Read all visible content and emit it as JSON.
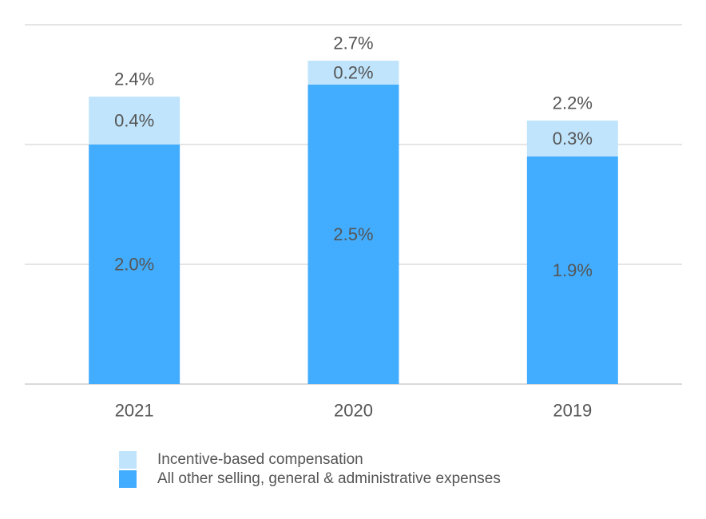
{
  "chart_data": {
    "type": "bar",
    "stacked": true,
    "categories": [
      "2021",
      "2020",
      "2019"
    ],
    "series": [
      {
        "name": "All other selling, general & administrative expenses",
        "values": [
          2.0,
          2.5,
          1.9
        ],
        "labels": [
          "2.0%",
          "2.5%",
          "1.9%"
        ],
        "color": "#42adff"
      },
      {
        "name": "Incentive-based compensation",
        "values": [
          0.4,
          0.2,
          0.3
        ],
        "labels": [
          "0.4%",
          "0.2%",
          "0.3%"
        ],
        "color": "#bfe4fc"
      }
    ],
    "totals": [
      2.4,
      2.7,
      2.2
    ],
    "total_labels": [
      "2.4%",
      "2.7%",
      "2.2%"
    ],
    "ylim": [
      0,
      3.0
    ],
    "gridlines": [
      0,
      1,
      2,
      3
    ],
    "grid": true,
    "legend_position": "bottom-left",
    "gridline_color": "#e5e5e5",
    "label_color": "#555555"
  },
  "legend": [
    {
      "label": "Incentive-based compensation",
      "color": "#bfe4fc"
    },
    {
      "label": "All other selling, general & administrative expenses",
      "color": "#42adff"
    }
  ]
}
